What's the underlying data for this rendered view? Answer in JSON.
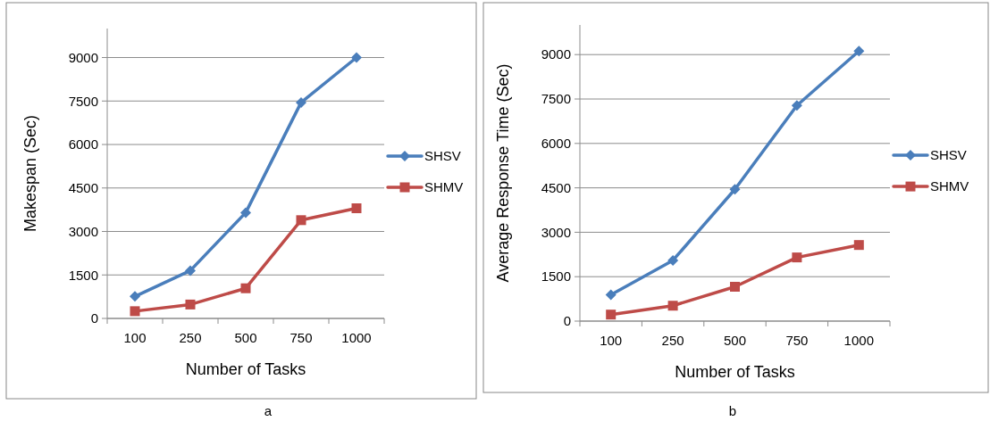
{
  "chart_data": [
    {
      "type": "line",
      "title": "a",
      "xlabel": "Number of Tasks",
      "ylabel": "Makespan (Sec)",
      "categories": [
        "100",
        "250",
        "500",
        "750",
        "1000"
      ],
      "ylim": [
        0,
        10000
      ],
      "yticks": [
        0,
        1500,
        3000,
        4500,
        6000,
        7500,
        9000
      ],
      "grid": "y",
      "legend": "right",
      "series": [
        {
          "name": "SHSV",
          "color": "#4a7ebb",
          "marker": "diamond",
          "values": [
            760,
            1650,
            3650,
            7450,
            9000
          ]
        },
        {
          "name": "SHMV",
          "color": "#be4b48",
          "marker": "square",
          "values": [
            250,
            480,
            1040,
            3390,
            3800
          ]
        }
      ]
    },
    {
      "type": "line",
      "title": "b",
      "xlabel": "Number of Tasks",
      "ylabel": "Average Response Time (Sec)",
      "categories": [
        "100",
        "250",
        "500",
        "750",
        "1000"
      ],
      "ylim": [
        0,
        10000
      ],
      "yticks": [
        0,
        1500,
        3000,
        4500,
        6000,
        7500,
        9000
      ],
      "grid": "y",
      "legend": "right",
      "series": [
        {
          "name": "SHSV",
          "color": "#4a7ebb",
          "marker": "diamond",
          "values": [
            890,
            2050,
            4450,
            7280,
            9120
          ]
        },
        {
          "name": "SHMV",
          "color": "#be4b48",
          "marker": "square",
          "values": [
            220,
            520,
            1160,
            2150,
            2570
          ]
        }
      ]
    }
  ]
}
